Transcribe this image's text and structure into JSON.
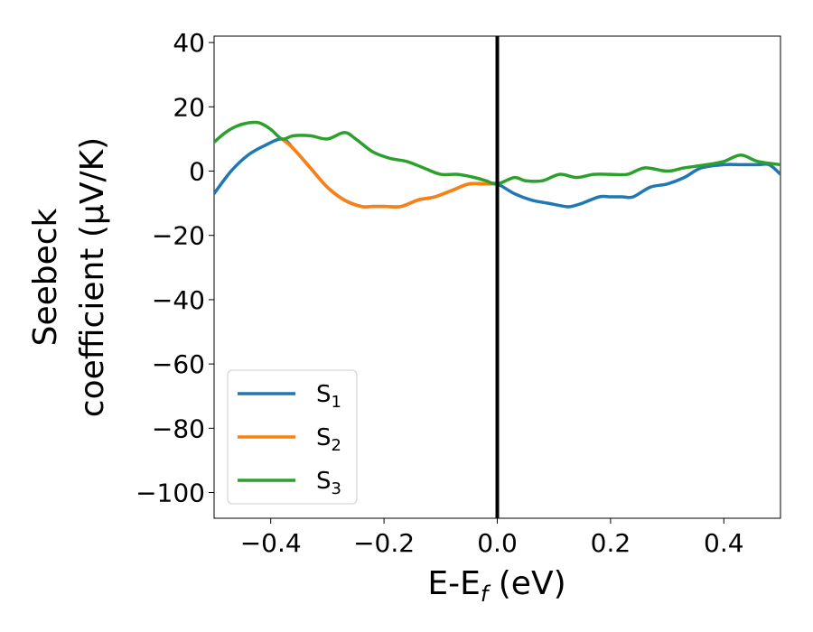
{
  "chart_data": {
    "type": "line",
    "xlabel": {
      "main": "E-E",
      "sub": "f",
      "unit": " (eV)"
    },
    "ylabel": {
      "line1": "Seebeck",
      "line2": "coefficient  (μV/K)"
    },
    "xlim": [
      -0.5,
      0.5
    ],
    "ylim": [
      -108,
      42
    ],
    "xticks": [
      -0.4,
      -0.2,
      0.0,
      0.2,
      0.4
    ],
    "xtick_labels": [
      "−0.4",
      "−0.2",
      "0.0",
      "0.2",
      "0.4"
    ],
    "yticks": [
      40,
      20,
      0,
      -20,
      -40,
      -60,
      -80,
      -100
    ],
    "ytick_labels": [
      "40",
      "20",
      "0",
      "−20",
      "−40",
      "−60",
      "−80",
      "−100"
    ],
    "grid": false,
    "legend_position": "lower-left",
    "vertical_line_x": 0.0,
    "series": [
      {
        "name": "S",
        "sub": "1",
        "color": "#1f77b4",
        "x": [
          -0.5,
          -0.47,
          -0.44,
          -0.41,
          -0.38,
          -0.36,
          -0.33,
          -0.3,
          -0.27,
          -0.24,
          -0.22,
          -0.2,
          -0.17,
          -0.14,
          -0.11,
          -0.08,
          -0.05,
          -0.02,
          0.0,
          0.03,
          0.06,
          0.09,
          0.12,
          0.13,
          0.15,
          0.18,
          0.2,
          0.22,
          0.24,
          0.27,
          0.3,
          0.33,
          0.36,
          0.4,
          0.43,
          0.46,
          0.48,
          0.5
        ],
        "y": [
          -7,
          0,
          5,
          8,
          10,
          7,
          1,
          -5,
          -9,
          -11,
          -11,
          -11,
          -11,
          -9,
          -8,
          -6,
          -4,
          -4,
          -4,
          -7,
          -9,
          -10,
          -11,
          -11,
          -10,
          -8,
          -8,
          -8,
          -8,
          -5,
          -4,
          -2,
          1,
          2,
          2,
          2,
          2,
          -1
        ]
      },
      {
        "name": "S",
        "sub": "2",
        "color": "#ff7f0e",
        "x": [
          -0.38,
          -0.36,
          -0.33,
          -0.3,
          -0.27,
          -0.24,
          -0.22,
          -0.2,
          -0.17,
          -0.14,
          -0.11,
          -0.08,
          -0.05,
          -0.02,
          0.0
        ],
        "y": [
          10,
          7,
          1,
          -5,
          -9,
          -11,
          -11,
          -11,
          -11,
          -9,
          -8,
          -6,
          -4,
          -4,
          -4
        ]
      },
      {
        "name": "S",
        "sub": "3",
        "color": "#2ca02c",
        "x": [
          -0.5,
          -0.48,
          -0.46,
          -0.44,
          -0.42,
          -0.4,
          -0.38,
          -0.36,
          -0.33,
          -0.3,
          -0.27,
          -0.25,
          -0.22,
          -0.19,
          -0.16,
          -0.13,
          -0.1,
          -0.07,
          -0.04,
          -0.02,
          0.0,
          0.03,
          0.05,
          0.08,
          0.11,
          0.14,
          0.17,
          0.2,
          0.23,
          0.26,
          0.3,
          0.33,
          0.37,
          0.4,
          0.43,
          0.46,
          0.5
        ],
        "y": [
          9,
          12,
          14,
          15,
          15,
          13,
          10,
          11,
          11,
          10,
          12,
          10,
          6,
          4,
          3,
          1,
          -1,
          -1,
          -2,
          -3,
          -4,
          -2,
          -3,
          -3,
          -1,
          -2,
          -1,
          -1,
          -1,
          1,
          0,
          1,
          2,
          3,
          5,
          3,
          2
        ]
      }
    ]
  }
}
